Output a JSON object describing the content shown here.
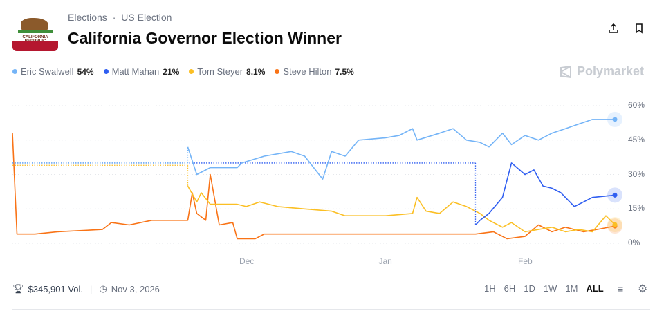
{
  "header": {
    "breadcrumb": [
      "Elections",
      "US Election"
    ],
    "separator": "·",
    "title": "California Governor Election Winner",
    "flag_text": "CALIFORNIA REPUBLIC",
    "share_icon": "share-icon",
    "bookmark_icon": "bookmark-icon"
  },
  "brand": "Polymarket",
  "legend": [
    {
      "name": "Eric Swalwell",
      "value": "54%",
      "color": "#74b4f7"
    },
    {
      "name": "Matt Mahan",
      "value": "21%",
      "color": "#2f5ef1"
    },
    {
      "name": "Tom Steyer",
      "value": "8.1%",
      "color": "#fbbf24"
    },
    {
      "name": "Steve Hilton",
      "value": "7.5%",
      "color": "#f97316"
    }
  ],
  "footer": {
    "volume": "$345,901 Vol.",
    "date": "Nov 3, 2026",
    "ranges": [
      "1H",
      "6H",
      "1D",
      "1W",
      "1M",
      "ALL"
    ],
    "active_range": "ALL"
  },
  "chart_data": {
    "type": "line",
    "ylim": [
      0,
      60
    ],
    "y_ticks": [
      "0%",
      "15%",
      "30%",
      "45%",
      "60%"
    ],
    "x_ticks": [
      {
        "label": "Dec",
        "date": "2025-12-01"
      },
      {
        "label": "Jan",
        "date": "2026-01-01"
      },
      {
        "label": "Feb",
        "date": "2026-02-01"
      }
    ],
    "x_range": [
      "2025-10-10",
      "2026-02-21"
    ],
    "grid": true,
    "series": [
      {
        "name": "Eric Swalwell",
        "color": "#74b4f7",
        "placeholder": {
          "from": "2025-10-10",
          "to": "2025-11-18",
          "value": 35
        },
        "points": [
          [
            "2025-11-18",
            42
          ],
          [
            "2025-11-20",
            30
          ],
          [
            "2025-11-23",
            33
          ],
          [
            "2025-11-29",
            33
          ],
          [
            "2025-11-30",
            35
          ],
          [
            "2025-12-05",
            38
          ],
          [
            "2025-12-11",
            40
          ],
          [
            "2025-12-14",
            38
          ],
          [
            "2025-12-18",
            28
          ],
          [
            "2025-12-20",
            40
          ],
          [
            "2025-12-23",
            38
          ],
          [
            "2025-12-26",
            45
          ],
          [
            "2026-01-01",
            46
          ],
          [
            "2026-01-04",
            47
          ],
          [
            "2026-01-07",
            50
          ],
          [
            "2026-01-08",
            45
          ],
          [
            "2026-01-13",
            48
          ],
          [
            "2026-01-16",
            50
          ],
          [
            "2026-01-19",
            45
          ],
          [
            "2026-01-22",
            44
          ],
          [
            "2026-01-24",
            42
          ],
          [
            "2026-01-27",
            48
          ],
          [
            "2026-01-29",
            43
          ],
          [
            "2026-02-01",
            47
          ],
          [
            "2026-02-04",
            45
          ],
          [
            "2026-02-07",
            48
          ],
          [
            "2026-02-10",
            50
          ],
          [
            "2026-02-13",
            52
          ],
          [
            "2026-02-16",
            54
          ],
          [
            "2026-02-21",
            54
          ]
        ]
      },
      {
        "name": "Matt Mahan",
        "color": "#2f5ef1",
        "placeholder": {
          "from": "2025-10-10",
          "to": "2026-01-21",
          "value": 35
        },
        "points": [
          [
            "2026-01-21",
            8
          ],
          [
            "2026-01-22",
            10
          ],
          [
            "2026-01-24",
            13
          ],
          [
            "2026-01-27",
            20
          ],
          [
            "2026-01-29",
            35
          ],
          [
            "2026-02-01",
            30
          ],
          [
            "2026-02-03",
            32
          ],
          [
            "2026-02-05",
            25
          ],
          [
            "2026-02-07",
            24
          ],
          [
            "2026-02-09",
            22
          ],
          [
            "2026-02-10",
            20
          ],
          [
            "2026-02-12",
            16
          ],
          [
            "2026-02-14",
            18
          ],
          [
            "2026-02-16",
            20
          ],
          [
            "2026-02-21",
            21
          ]
        ]
      },
      {
        "name": "Tom Steyer",
        "color": "#fbbf24",
        "placeholder": {
          "from": "2025-10-10",
          "to": "2025-11-18",
          "value": 34
        },
        "points": [
          [
            "2025-11-18",
            25
          ],
          [
            "2025-11-20",
            18
          ],
          [
            "2025-11-21",
            22
          ],
          [
            "2025-11-23",
            17
          ],
          [
            "2025-11-29",
            17
          ],
          [
            "2025-12-01",
            16
          ],
          [
            "2025-12-04",
            18
          ],
          [
            "2025-12-08",
            16
          ],
          [
            "2025-12-14",
            15
          ],
          [
            "2025-12-20",
            14
          ],
          [
            "2025-12-23",
            12
          ],
          [
            "2026-01-01",
            12
          ],
          [
            "2026-01-07",
            13
          ],
          [
            "2026-01-08",
            20
          ],
          [
            "2026-01-10",
            14
          ],
          [
            "2026-01-13",
            13
          ],
          [
            "2026-01-16",
            18
          ],
          [
            "2026-01-19",
            16
          ],
          [
            "2026-01-22",
            13
          ],
          [
            "2026-01-24",
            10
          ],
          [
            "2026-01-27",
            7
          ],
          [
            "2026-01-29",
            9
          ],
          [
            "2026-02-01",
            5
          ],
          [
            "2026-02-04",
            6
          ],
          [
            "2026-02-07",
            7
          ],
          [
            "2026-02-10",
            5
          ],
          [
            "2026-02-13",
            6
          ],
          [
            "2026-02-16",
            5
          ],
          [
            "2026-02-19",
            12
          ],
          [
            "2026-02-21",
            8.1
          ]
        ]
      },
      {
        "name": "Steve Hilton",
        "color": "#f97316",
        "points": [
          [
            "2025-10-10",
            48
          ],
          [
            "2025-10-11",
            4
          ],
          [
            "2025-10-15",
            4
          ],
          [
            "2025-10-20",
            5
          ],
          [
            "2025-10-30",
            6
          ],
          [
            "2025-11-01",
            9
          ],
          [
            "2025-11-05",
            8
          ],
          [
            "2025-11-10",
            10
          ],
          [
            "2025-11-18",
            10
          ],
          [
            "2025-11-19",
            22
          ],
          [
            "2025-11-20",
            13
          ],
          [
            "2025-11-22",
            10
          ],
          [
            "2025-11-23",
            30
          ],
          [
            "2025-11-25",
            8
          ],
          [
            "2025-11-28",
            9
          ],
          [
            "2025-11-29",
            2
          ],
          [
            "2025-12-03",
            2
          ],
          [
            "2025-12-05",
            4
          ],
          [
            "2025-12-20",
            4
          ],
          [
            "2026-01-10",
            4
          ],
          [
            "2026-01-21",
            4
          ],
          [
            "2026-01-25",
            5
          ],
          [
            "2026-01-28",
            2
          ],
          [
            "2026-02-01",
            3
          ],
          [
            "2026-02-04",
            8
          ],
          [
            "2026-02-07",
            5
          ],
          [
            "2026-02-10",
            7
          ],
          [
            "2026-02-14",
            5
          ],
          [
            "2026-02-17",
            6
          ],
          [
            "2026-02-21",
            7.5
          ]
        ]
      }
    ]
  }
}
